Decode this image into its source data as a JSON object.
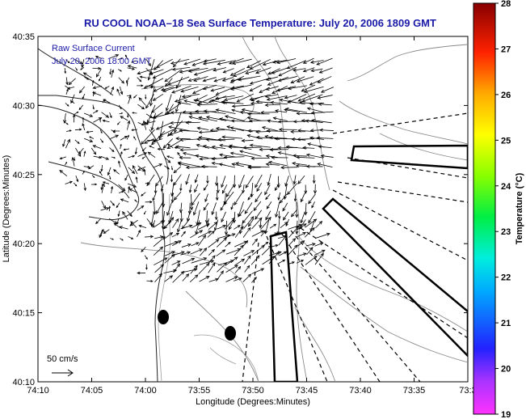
{
  "map": {
    "title": "RU COOL  NOAA–18  Sea Surface Temperature:  July 20, 2006 1809 GMT",
    "inset_line1": "Raw Surface Current",
    "inset_line2": "July 20, 2006 18:00 GMT",
    "scale_label": "50 cm/s",
    "xlabel": "Longitude (Degrees:Minutes)",
    "ylabel": "Latitude (Degrees:Minutes)",
    "x_ticks": [
      "74:10",
      "74:05",
      "74:00",
      "73:55",
      "73:50",
      "73:45",
      "73:40",
      "73:35",
      "73:3"
    ],
    "y_ticks": [
      "40:35",
      "40:30",
      "40:25",
      "40:20",
      "40:15",
      "40:10"
    ]
  },
  "colorbar": {
    "label": "Temperature (°C)",
    "ticks": [
      "28",
      "27",
      "26",
      "25",
      "24",
      "23",
      "22",
      "21",
      "20",
      "19"
    ],
    "range": [
      19,
      28
    ],
    "colormap": [
      "#ff00ff",
      "#2222ff",
      "#00dddd",
      "#00ff00",
      "#ffff00",
      "#ff8800",
      "#ff0000",
      "#880000"
    ]
  }
}
